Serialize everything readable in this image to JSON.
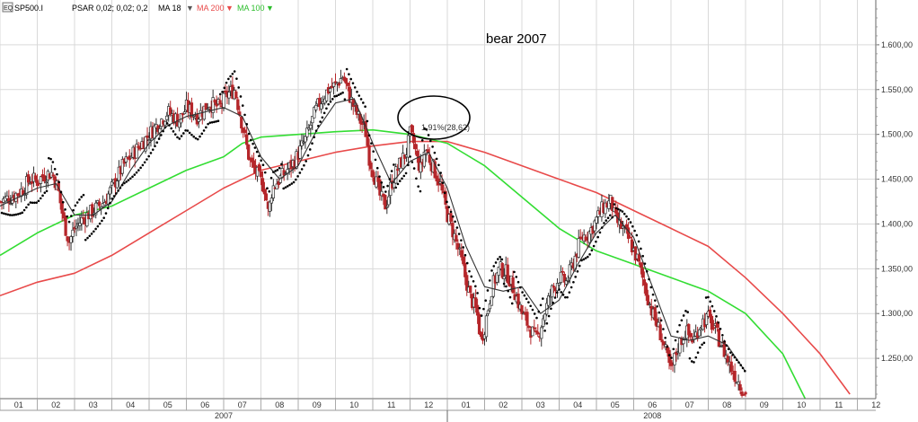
{
  "chart_data": {
    "type": "line",
    "title": "",
    "annotation": "bear 2007",
    "marker_label": "1,91%(28,62)",
    "legend": {
      "symbol": "SP500.I",
      "psar_label": "PSAR 0,02; 0,02; 0,2",
      "ma18_label": "MA 18",
      "ma200_label": "MA 200",
      "ma100_label": "MA 100"
    },
    "colors": {
      "price_up": "#2e2e2e",
      "price_down": "#b5262a",
      "ma18": "#333333",
      "ma200": "#e84a4a",
      "ma100": "#33dd33",
      "psar": "#000000",
      "grid": "#d9d9d9"
    },
    "x_ticks": [
      "01",
      "02",
      "03",
      "04",
      "05",
      "06",
      "07",
      "08",
      "09",
      "10",
      "11",
      "12",
      "01",
      "02",
      "03",
      "04",
      "05",
      "06",
      "07",
      "08",
      "09",
      "10",
      "11",
      "12"
    ],
    "years": [
      "2007",
      "2008"
    ],
    "y_ticks": [
      "1.600,00",
      "1.550,00",
      "1.500,00",
      "1.450,00",
      "1.400,00",
      "1.350,00",
      "1.300,00",
      "1.250,00"
    ],
    "ylim": [
      1205,
      1650
    ],
    "x_months": [
      0,
      23.2
    ],
    "close": [
      [
        0,
        1425
      ],
      [
        0.3,
        1430
      ],
      [
        0.6,
        1438
      ],
      [
        0.8,
        1450
      ],
      [
        1.0,
        1448
      ],
      [
        1.2,
        1455
      ],
      [
        1.4,
        1457
      ],
      [
        1.55,
        1440
      ],
      [
        1.7,
        1405
      ],
      [
        1.85,
        1380
      ],
      [
        2.0,
        1395
      ],
      [
        2.2,
        1405
      ],
      [
        2.5,
        1415
      ],
      [
        2.8,
        1425
      ],
      [
        3.0,
        1440
      ],
      [
        3.3,
        1465
      ],
      [
        3.6,
        1480
      ],
      [
        3.9,
        1495
      ],
      [
        4.2,
        1510
      ],
      [
        4.5,
        1525
      ],
      [
        4.8,
        1515
      ],
      [
        5.0,
        1530
      ],
      [
        5.3,
        1520
      ],
      [
        5.6,
        1535
      ],
      [
        5.9,
        1530
      ],
      [
        6.1,
        1545
      ],
      [
        6.3,
        1550
      ],
      [
        6.5,
        1510
      ],
      [
        6.7,
        1470
      ],
      [
        6.9,
        1455
      ],
      [
        7.1,
        1440
      ],
      [
        7.2,
        1410
      ],
      [
        7.3,
        1440
      ],
      [
        7.6,
        1455
      ],
      [
        7.9,
        1470
      ],
      [
        8.2,
        1495
      ],
      [
        8.5,
        1530
      ],
      [
        8.8,
        1550
      ],
      [
        9.0,
        1555
      ],
      [
        9.2,
        1565
      ],
      [
        9.4,
        1540
      ],
      [
        9.6,
        1520
      ],
      [
        9.8,
        1505
      ],
      [
        9.9,
        1475
      ],
      [
        10.0,
        1460
      ],
      [
        10.2,
        1430
      ],
      [
        10.35,
        1420
      ],
      [
        10.5,
        1445
      ],
      [
        10.7,
        1465
      ],
      [
        10.9,
        1480
      ],
      [
        11.0,
        1500
      ],
      [
        11.1,
        1490
      ],
      [
        11.2,
        1470
      ],
      [
        11.3,
        1460
      ],
      [
        11.4,
        1485
      ],
      [
        11.6,
        1465
      ],
      [
        11.8,
        1445
      ],
      [
        12.0,
        1410
      ],
      [
        12.2,
        1385
      ],
      [
        12.4,
        1355
      ],
      [
        12.6,
        1320
      ],
      [
        12.8,
        1300
      ],
      [
        12.9,
        1270
      ],
      [
        13.0,
        1285
      ],
      [
        13.2,
        1330
      ],
      [
        13.4,
        1350
      ],
      [
        13.6,
        1345
      ],
      [
        13.8,
        1325
      ],
      [
        14.0,
        1300
      ],
      [
        14.2,
        1285
      ],
      [
        14.4,
        1270
      ],
      [
        14.6,
        1300
      ],
      [
        14.8,
        1325
      ],
      [
        15.0,
        1340
      ],
      [
        15.2,
        1335
      ],
      [
        15.4,
        1360
      ],
      [
        15.6,
        1385
      ],
      [
        15.8,
        1390
      ],
      [
        16.0,
        1405
      ],
      [
        16.2,
        1420
      ],
      [
        16.4,
        1425
      ],
      [
        16.5,
        1405
      ],
      [
        16.7,
        1395
      ],
      [
        16.9,
        1380
      ],
      [
        17.1,
        1360
      ],
      [
        17.3,
        1330
      ],
      [
        17.5,
        1300
      ],
      [
        17.7,
        1280
      ],
      [
        17.9,
        1250
      ],
      [
        18.0,
        1235
      ],
      [
        18.2,
        1265
      ],
      [
        18.4,
        1280
      ],
      [
        18.6,
        1270
      ],
      [
        18.8,
        1290
      ],
      [
        19.0,
        1295
      ],
      [
        19.2,
        1280
      ],
      [
        19.4,
        1260
      ],
      [
        19.6,
        1240
      ],
      [
        19.8,
        1225
      ],
      [
        20.0,
        1210
      ]
    ],
    "ma18": [
      [
        0,
        1420
      ],
      [
        1.0,
        1440
      ],
      [
        1.5,
        1445
      ],
      [
        2.0,
        1410
      ],
      [
        2.5,
        1410
      ],
      [
        3.0,
        1425
      ],
      [
        3.5,
        1460
      ],
      [
        4.0,
        1490
      ],
      [
        4.5,
        1510
      ],
      [
        5.0,
        1520
      ],
      [
        5.5,
        1525
      ],
      [
        6.0,
        1530
      ],
      [
        6.5,
        1520
      ],
      [
        7.0,
        1475
      ],
      [
        7.5,
        1450
      ],
      [
        8.0,
        1465
      ],
      [
        8.5,
        1505
      ],
      [
        9.0,
        1535
      ],
      [
        9.5,
        1540
      ],
      [
        10.0,
        1490
      ],
      [
        10.5,
        1445
      ],
      [
        11.0,
        1470
      ],
      [
        11.5,
        1480
      ],
      [
        12.0,
        1440
      ],
      [
        12.5,
        1375
      ],
      [
        13.0,
        1330
      ],
      [
        13.5,
        1325
      ],
      [
        14.0,
        1330
      ],
      [
        14.5,
        1300
      ],
      [
        15.0,
        1315
      ],
      [
        15.5,
        1355
      ],
      [
        16.0,
        1390
      ],
      [
        16.5,
        1410
      ],
      [
        17.0,
        1385
      ],
      [
        17.5,
        1330
      ],
      [
        18.0,
        1275
      ],
      [
        18.5,
        1270
      ],
      [
        19.0,
        1275
      ],
      [
        19.5,
        1265
      ],
      [
        20.0,
        1235
      ]
    ],
    "ma100": [
      [
        0,
        1365
      ],
      [
        1.0,
        1390
      ],
      [
        2.0,
        1410
      ],
      [
        3.0,
        1420
      ],
      [
        4.0,
        1440
      ],
      [
        5.0,
        1460
      ],
      [
        6.0,
        1475
      ],
      [
        6.5,
        1490
      ],
      [
        7.0,
        1497
      ],
      [
        8.0,
        1500
      ],
      [
        9.0,
        1503
      ],
      [
        10.0,
        1505
      ],
      [
        11.0,
        1500
      ],
      [
        12.0,
        1490
      ],
      [
        13.0,
        1465
      ],
      [
        14.0,
        1430
      ],
      [
        15.0,
        1395
      ],
      [
        16.0,
        1370
      ],
      [
        17.0,
        1355
      ],
      [
        18.0,
        1340
      ],
      [
        19.0,
        1325
      ],
      [
        20.0,
        1300
      ],
      [
        21.0,
        1255
      ],
      [
        21.6,
        1205
      ]
    ],
    "ma200": [
      [
        0,
        1320
      ],
      [
        1.0,
        1335
      ],
      [
        2.0,
        1345
      ],
      [
        3.0,
        1365
      ],
      [
        4.0,
        1390
      ],
      [
        5.0,
        1415
      ],
      [
        6.0,
        1440
      ],
      [
        7.0,
        1460
      ],
      [
        8.0,
        1470
      ],
      [
        9.0,
        1480
      ],
      [
        10.0,
        1487
      ],
      [
        11.0,
        1492
      ],
      [
        12.0,
        1492
      ],
      [
        13.0,
        1480
      ],
      [
        14.0,
        1465
      ],
      [
        15.0,
        1450
      ],
      [
        16.0,
        1435
      ],
      [
        17.0,
        1415
      ],
      [
        18.0,
        1395
      ],
      [
        19.0,
        1375
      ],
      [
        20.0,
        1340
      ],
      [
        21.0,
        1300
      ],
      [
        22.0,
        1255
      ],
      [
        22.8,
        1210
      ]
    ]
  }
}
